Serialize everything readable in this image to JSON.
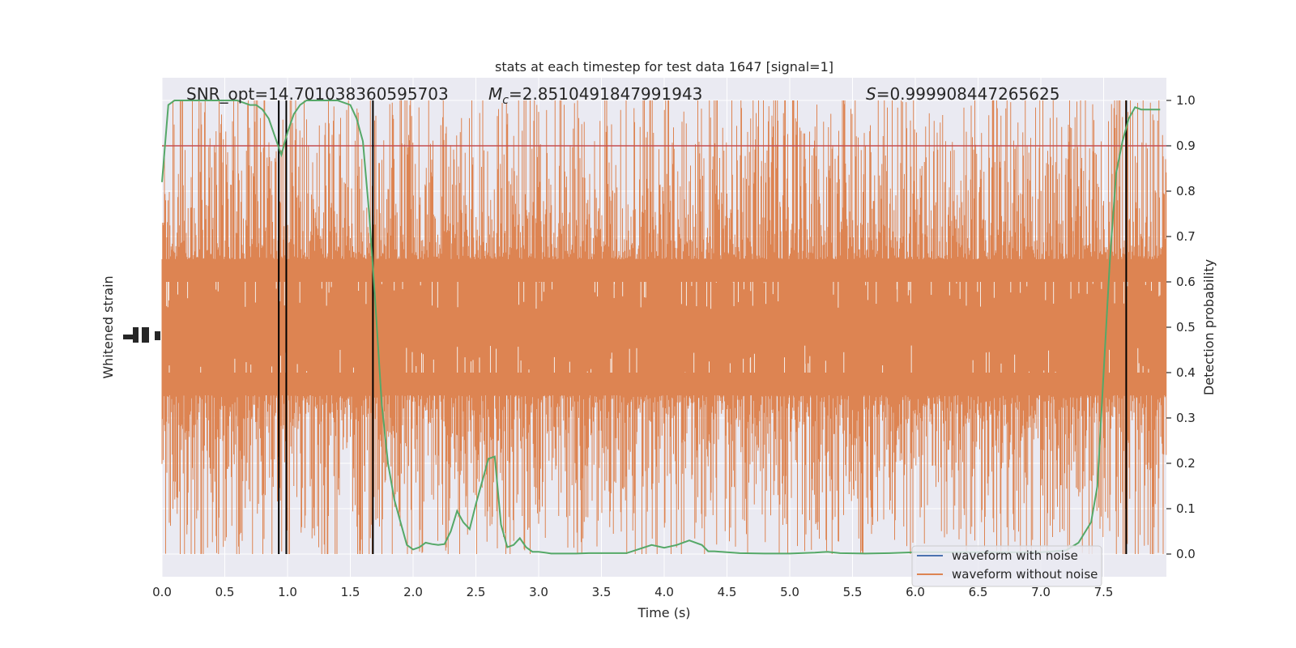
{
  "chart_data": {
    "type": "line",
    "title": "stats at each timestep for test data 1647 [signal=1]",
    "xlabel": "Time (s)",
    "ylabel_left": "Whitened strain",
    "ylabel_right": "Detection probability",
    "xlim": [
      0.0,
      8.0
    ],
    "ylim_right": [
      -0.05,
      1.05
    ],
    "x_ticks": [
      "0.0",
      "0.5",
      "1.0",
      "1.5",
      "2.0",
      "2.5",
      "3.0",
      "3.5",
      "4.0",
      "4.5",
      "5.0",
      "5.5",
      "6.0",
      "6.5",
      "7.0",
      "7.5"
    ],
    "y_ticks_right": [
      "0.0",
      "0.1",
      "0.2",
      "0.3",
      "0.4",
      "0.5",
      "0.6",
      "0.7",
      "0.8",
      "0.9",
      "1.0"
    ],
    "annotations": {
      "snr": "SNR_opt=14.701038360595703",
      "mc_symbol": "M",
      "mc_sub": "c",
      "mc_value": "=2.8510491847991943",
      "s_symbol": "S",
      "s_value": "=0.999908447265625"
    },
    "threshold": 0.9,
    "vertical_lines_x": [
      0.93,
      0.99,
      1.68,
      7.68
    ],
    "noise_band": {
      "series_name": "waveform without noise",
      "dense_low": 0.4,
      "dense_high": 0.6,
      "spike_range": [
        0.0,
        1.0
      ]
    },
    "detection_probability": {
      "x": [
        0.0,
        0.05,
        0.1,
        0.2,
        0.3,
        0.4,
        0.5,
        0.6,
        0.7,
        0.75,
        0.8,
        0.85,
        0.9,
        0.95,
        1.0,
        1.05,
        1.1,
        1.15,
        1.2,
        1.3,
        1.4,
        1.5,
        1.55,
        1.6,
        1.65,
        1.7,
        1.75,
        1.8,
        1.85,
        1.9,
        1.95,
        2.0,
        2.05,
        2.1,
        2.15,
        2.2,
        2.25,
        2.3,
        2.35,
        2.4,
        2.45,
        2.5,
        2.55,
        2.6,
        2.65,
        2.7,
        2.75,
        2.8,
        2.85,
        2.9,
        2.95,
        3.0,
        3.05,
        3.1,
        3.15,
        3.2,
        3.3,
        3.4,
        3.5,
        3.7,
        3.9,
        4.0,
        4.1,
        4.2,
        4.3,
        4.35,
        4.4,
        4.5,
        4.6,
        4.8,
        5.0,
        5.2,
        5.3,
        5.4,
        5.6,
        5.8,
        6.0,
        6.5,
        7.0,
        7.2,
        7.3,
        7.4,
        7.45,
        7.5,
        7.55,
        7.6,
        7.65,
        7.7,
        7.75,
        7.8,
        7.85,
        7.9,
        7.95
      ],
      "y": [
        0.82,
        0.99,
        1.0,
        1.0,
        1.0,
        1.0,
        1.0,
        1.0,
        0.99,
        0.99,
        0.98,
        0.96,
        0.92,
        0.88,
        0.93,
        0.97,
        0.99,
        1.0,
        1.0,
        1.0,
        1.0,
        0.99,
        0.96,
        0.91,
        0.75,
        0.55,
        0.33,
        0.2,
        0.12,
        0.07,
        0.02,
        0.01,
        0.015,
        0.025,
        0.022,
        0.02,
        0.022,
        0.05,
        0.095,
        0.07,
        0.055,
        0.11,
        0.16,
        0.21,
        0.215,
        0.065,
        0.015,
        0.02,
        0.035,
        0.015,
        0.005,
        0.005,
        0.003,
        0.001,
        0.001,
        0.001,
        0.001,
        0.002,
        0.002,
        0.002,
        0.02,
        0.014,
        0.02,
        0.03,
        0.02,
        0.006,
        0.006,
        0.004,
        0.002,
        0.001,
        0.001,
        0.003,
        0.005,
        0.002,
        0.001,
        0.002,
        0.004,
        0.004,
        0.004,
        0.008,
        0.025,
        0.07,
        0.15,
        0.4,
        0.65,
        0.84,
        0.91,
        0.96,
        0.985,
        0.98,
        0.98,
        0.98,
        0.98
      ]
    },
    "legend": {
      "position": "lower-right",
      "entries": [
        {
          "label": "waveform with noise",
          "color": "#4c72b0"
        },
        {
          "label": "waveform without noise",
          "color": "#dd8452"
        }
      ]
    },
    "colors": {
      "background": "#eaeaf2",
      "grid": "#ffffff",
      "noise": "#dd8452",
      "probability": "#55a868",
      "threshold": "#c44e52",
      "vlines": "#000000"
    }
  }
}
